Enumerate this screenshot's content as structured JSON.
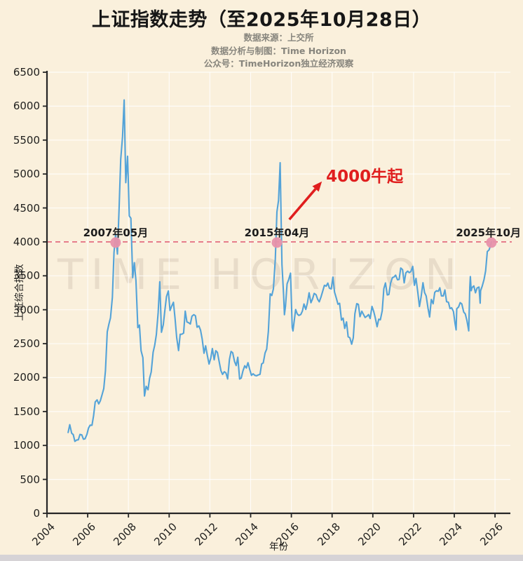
{
  "page": {
    "background": "#faf0dc",
    "bottom_strip_color": "#d6d3d6"
  },
  "header": {
    "title": "上证指数走势（至2025年10月28日）",
    "subtitle_lines": [
      "数据来源：上交所",
      "数据分析与制图：Time Horizon",
      "公众号：TimeHorizon独立经济观察"
    ]
  },
  "watermark": "TIME HORIZON",
  "chart_data": {
    "type": "line",
    "title": "上证指数走势（至2025年10月28日）",
    "xlabel": "年份",
    "ylabel": "上证综合指数",
    "xlim": [
      2004,
      2026.8
    ],
    "ylim": [
      0,
      6500
    ],
    "x_ticks": [
      2004,
      2006,
      2008,
      2010,
      2012,
      2014,
      2016,
      2018,
      2020,
      2022,
      2024,
      2026
    ],
    "y_ticks": [
      0,
      500,
      1000,
      1500,
      2000,
      2500,
      3000,
      3500,
      4000,
      4500,
      5000,
      5500,
      6000,
      6500
    ],
    "grid": true,
    "legend": "none",
    "line_color": "#54a3d8",
    "reference_line": {
      "value": 4000,
      "color": "#e26278",
      "style": "dashed"
    },
    "marker_color": "#e791aa",
    "markers": [
      {
        "label": "2007年05月",
        "x": 2007.37,
        "y": 4000
      },
      {
        "label": "2015年04月",
        "x": 2015.29,
        "y": 4000
      },
      {
        "label": "2025年10月",
        "x": 2025.82,
        "y": 4000
      }
    ],
    "callout": {
      "text": "4000牛起",
      "color": "#e01e1e",
      "text_at": [
        2019.6,
        4990
      ],
      "arrow_from": [
        2015.9,
        4330
      ],
      "arrow_to": [
        2017.5,
        4890
      ]
    },
    "series": [
      {
        "name": "上证综合指数",
        "points": [
          [
            2005.04,
            1191
          ],
          [
            2005.12,
            1306
          ],
          [
            2005.21,
            1181
          ],
          [
            2005.29,
            1159
          ],
          [
            2005.37,
            1060
          ],
          [
            2005.46,
            1081
          ],
          [
            2005.54,
            1083
          ],
          [
            2005.62,
            1163
          ],
          [
            2005.71,
            1155
          ],
          [
            2005.79,
            1092
          ],
          [
            2005.87,
            1099
          ],
          [
            2005.96,
            1161
          ],
          [
            2006.04,
            1258
          ],
          [
            2006.12,
            1299
          ],
          [
            2006.21,
            1298
          ],
          [
            2006.29,
            1440
          ],
          [
            2006.37,
            1641
          ],
          [
            2006.46,
            1672
          ],
          [
            2006.54,
            1612
          ],
          [
            2006.62,
            1658
          ],
          [
            2006.71,
            1752
          ],
          [
            2006.79,
            1837
          ],
          [
            2006.87,
            2099
          ],
          [
            2006.96,
            2675
          ],
          [
            2007.04,
            2786
          ],
          [
            2007.12,
            2881
          ],
          [
            2007.21,
            3183
          ],
          [
            2007.29,
            3841
          ],
          [
            2007.37,
            4109
          ],
          [
            2007.46,
            3820
          ],
          [
            2007.54,
            4471
          ],
          [
            2007.62,
            5218
          ],
          [
            2007.71,
            5552
          ],
          [
            2007.79,
            6092
          ],
          [
            2007.87,
            4872
          ],
          [
            2007.96,
            5262
          ],
          [
            2008.04,
            4383
          ],
          [
            2008.12,
            4348
          ],
          [
            2008.21,
            3473
          ],
          [
            2008.29,
            3693
          ],
          [
            2008.37,
            3433
          ],
          [
            2008.46,
            2736
          ],
          [
            2008.54,
            2775
          ],
          [
            2008.62,
            2397
          ],
          [
            2008.71,
            2294
          ],
          [
            2008.79,
            1729
          ],
          [
            2008.87,
            1871
          ],
          [
            2008.96,
            1821
          ],
          [
            2009.04,
            1991
          ],
          [
            2009.12,
            2083
          ],
          [
            2009.21,
            2373
          ],
          [
            2009.29,
            2478
          ],
          [
            2009.37,
            2632
          ],
          [
            2009.46,
            2959
          ],
          [
            2009.54,
            3412
          ],
          [
            2009.62,
            2668
          ],
          [
            2009.71,
            2779
          ],
          [
            2009.79,
            2995
          ],
          [
            2009.87,
            3195
          ],
          [
            2009.96,
            3277
          ],
          [
            2010.04,
            2989
          ],
          [
            2010.12,
            3052
          ],
          [
            2010.21,
            3109
          ],
          [
            2010.29,
            2871
          ],
          [
            2010.37,
            2592
          ],
          [
            2010.46,
            2398
          ],
          [
            2010.54,
            2638
          ],
          [
            2010.62,
            2639
          ],
          [
            2010.71,
            2656
          ],
          [
            2010.79,
            2979
          ],
          [
            2010.87,
            2820
          ],
          [
            2010.96,
            2808
          ],
          [
            2011.04,
            2790
          ],
          [
            2011.12,
            2905
          ],
          [
            2011.21,
            2928
          ],
          [
            2011.29,
            2911
          ],
          [
            2011.37,
            2743
          ],
          [
            2011.46,
            2762
          ],
          [
            2011.54,
            2701
          ],
          [
            2011.62,
            2567
          ],
          [
            2011.71,
            2359
          ],
          [
            2011.79,
            2468
          ],
          [
            2011.87,
            2333
          ],
          [
            2011.96,
            2199
          ],
          [
            2012.04,
            2285
          ],
          [
            2012.12,
            2428
          ],
          [
            2012.21,
            2262
          ],
          [
            2012.29,
            2396
          ],
          [
            2012.37,
            2372
          ],
          [
            2012.46,
            2225
          ],
          [
            2012.54,
            2103
          ],
          [
            2012.62,
            2047
          ],
          [
            2012.71,
            2086
          ],
          [
            2012.79,
            2068
          ],
          [
            2012.87,
            1980
          ],
          [
            2012.96,
            2269
          ],
          [
            2013.04,
            2385
          ],
          [
            2013.12,
            2365
          ],
          [
            2013.21,
            2236
          ],
          [
            2013.29,
            2177
          ],
          [
            2013.37,
            2300
          ],
          [
            2013.46,
            1979
          ],
          [
            2013.54,
            1993
          ],
          [
            2013.62,
            2098
          ],
          [
            2013.71,
            2174
          ],
          [
            2013.79,
            2141
          ],
          [
            2013.87,
            2220
          ],
          [
            2013.96,
            2116
          ],
          [
            2014.04,
            2033
          ],
          [
            2014.12,
            2056
          ],
          [
            2014.21,
            2033
          ],
          [
            2014.29,
            2026
          ],
          [
            2014.37,
            2039
          ],
          [
            2014.46,
            2048
          ],
          [
            2014.54,
            2201
          ],
          [
            2014.62,
            2217
          ],
          [
            2014.71,
            2363
          ],
          [
            2014.79,
            2420
          ],
          [
            2014.87,
            2682
          ],
          [
            2014.96,
            3234
          ],
          [
            2015.04,
            3210
          ],
          [
            2015.12,
            3310
          ],
          [
            2015.21,
            3747
          ],
          [
            2015.29,
            4441
          ],
          [
            2015.37,
            4611
          ],
          [
            2015.45,
            5166
          ],
          [
            2015.5,
            4277
          ],
          [
            2015.54,
            3663
          ],
          [
            2015.62,
            3205
          ],
          [
            2015.66,
            2927
          ],
          [
            2015.71,
            3052
          ],
          [
            2015.79,
            3382
          ],
          [
            2015.87,
            3445
          ],
          [
            2015.96,
            3539
          ],
          [
            2016.04,
            2737
          ],
          [
            2016.08,
            2688
          ],
          [
            2016.21,
            3003
          ],
          [
            2016.29,
            2938
          ],
          [
            2016.37,
            2916
          ],
          [
            2016.46,
            2929
          ],
          [
            2016.54,
            2979
          ],
          [
            2016.62,
            3085
          ],
          [
            2016.71,
            3004
          ],
          [
            2016.79,
            3100
          ],
          [
            2016.87,
            3250
          ],
          [
            2016.96,
            3103
          ],
          [
            2017.04,
            3159
          ],
          [
            2017.12,
            3241
          ],
          [
            2017.21,
            3222
          ],
          [
            2017.29,
            3154
          ],
          [
            2017.37,
            3117
          ],
          [
            2017.46,
            3192
          ],
          [
            2017.54,
            3273
          ],
          [
            2017.62,
            3360
          ],
          [
            2017.71,
            3348
          ],
          [
            2017.79,
            3393
          ],
          [
            2017.87,
            3317
          ],
          [
            2017.96,
            3307
          ],
          [
            2018.04,
            3480
          ],
          [
            2018.12,
            3259
          ],
          [
            2018.21,
            3168
          ],
          [
            2018.29,
            3082
          ],
          [
            2018.37,
            3095
          ],
          [
            2018.46,
            2847
          ],
          [
            2018.54,
            2876
          ],
          [
            2018.62,
            2725
          ],
          [
            2018.71,
            2821
          ],
          [
            2018.79,
            2602
          ],
          [
            2018.87,
            2588
          ],
          [
            2018.96,
            2493
          ],
          [
            2019.04,
            2584
          ],
          [
            2019.12,
            2940
          ],
          [
            2019.21,
            3090
          ],
          [
            2019.29,
            3078
          ],
          [
            2019.37,
            2898
          ],
          [
            2019.46,
            2978
          ],
          [
            2019.54,
            2932
          ],
          [
            2019.62,
            2886
          ],
          [
            2019.71,
            2905
          ],
          [
            2019.79,
            2929
          ],
          [
            2019.87,
            2871
          ],
          [
            2019.96,
            3050
          ],
          [
            2020.04,
            2976
          ],
          [
            2020.12,
            2880
          ],
          [
            2020.21,
            2750
          ],
          [
            2020.29,
            2860
          ],
          [
            2020.37,
            2852
          ],
          [
            2020.46,
            2984
          ],
          [
            2020.54,
            3310
          ],
          [
            2020.62,
            3395
          ],
          [
            2020.71,
            3218
          ],
          [
            2020.79,
            3224
          ],
          [
            2020.87,
            3391
          ],
          [
            2020.96,
            3473
          ],
          [
            2021.04,
            3483
          ],
          [
            2021.12,
            3509
          ],
          [
            2021.21,
            3441
          ],
          [
            2021.29,
            3446
          ],
          [
            2021.37,
            3615
          ],
          [
            2021.46,
            3591
          ],
          [
            2021.54,
            3397
          ],
          [
            2021.62,
            3543
          ],
          [
            2021.71,
            3568
          ],
          [
            2021.79,
            3547
          ],
          [
            2021.87,
            3563
          ],
          [
            2021.96,
            3639
          ],
          [
            2022.04,
            3361
          ],
          [
            2022.12,
            3462
          ],
          [
            2022.21,
            3252
          ],
          [
            2022.29,
            3047
          ],
          [
            2022.37,
            3186
          ],
          [
            2022.46,
            3398
          ],
          [
            2022.54,
            3253
          ],
          [
            2022.62,
            3202
          ],
          [
            2022.71,
            3024
          ],
          [
            2022.79,
            2893
          ],
          [
            2022.87,
            3151
          ],
          [
            2022.96,
            3089
          ],
          [
            2023.04,
            3255
          ],
          [
            2023.12,
            3279
          ],
          [
            2023.21,
            3272
          ],
          [
            2023.29,
            3323
          ],
          [
            2023.37,
            3204
          ],
          [
            2023.46,
            3202
          ],
          [
            2023.54,
            3291
          ],
          [
            2023.62,
            3119
          ],
          [
            2023.71,
            3110
          ],
          [
            2023.79,
            3018
          ],
          [
            2023.87,
            3029
          ],
          [
            2023.96,
            2974
          ],
          [
            2024.04,
            2788
          ],
          [
            2024.09,
            2702
          ],
          [
            2024.12,
            3015
          ],
          [
            2024.21,
            3041
          ],
          [
            2024.29,
            3104
          ],
          [
            2024.37,
            3086
          ],
          [
            2024.46,
            2967
          ],
          [
            2024.54,
            2938
          ],
          [
            2024.62,
            2842
          ],
          [
            2024.71,
            2689
          ],
          [
            2024.76,
            3336
          ],
          [
            2024.79,
            3489
          ],
          [
            2024.83,
            3280
          ],
          [
            2024.87,
            3326
          ],
          [
            2024.96,
            3351
          ],
          [
            2025.04,
            3250
          ],
          [
            2025.12,
            3320
          ],
          [
            2025.21,
            3335
          ],
          [
            2025.27,
            3097
          ],
          [
            2025.29,
            3279
          ],
          [
            2025.37,
            3347
          ],
          [
            2025.46,
            3444
          ],
          [
            2025.54,
            3573
          ],
          [
            2025.62,
            3858
          ],
          [
            2025.71,
            3883
          ],
          [
            2025.78,
            3950
          ],
          [
            2025.82,
            4000
          ]
        ]
      }
    ]
  }
}
